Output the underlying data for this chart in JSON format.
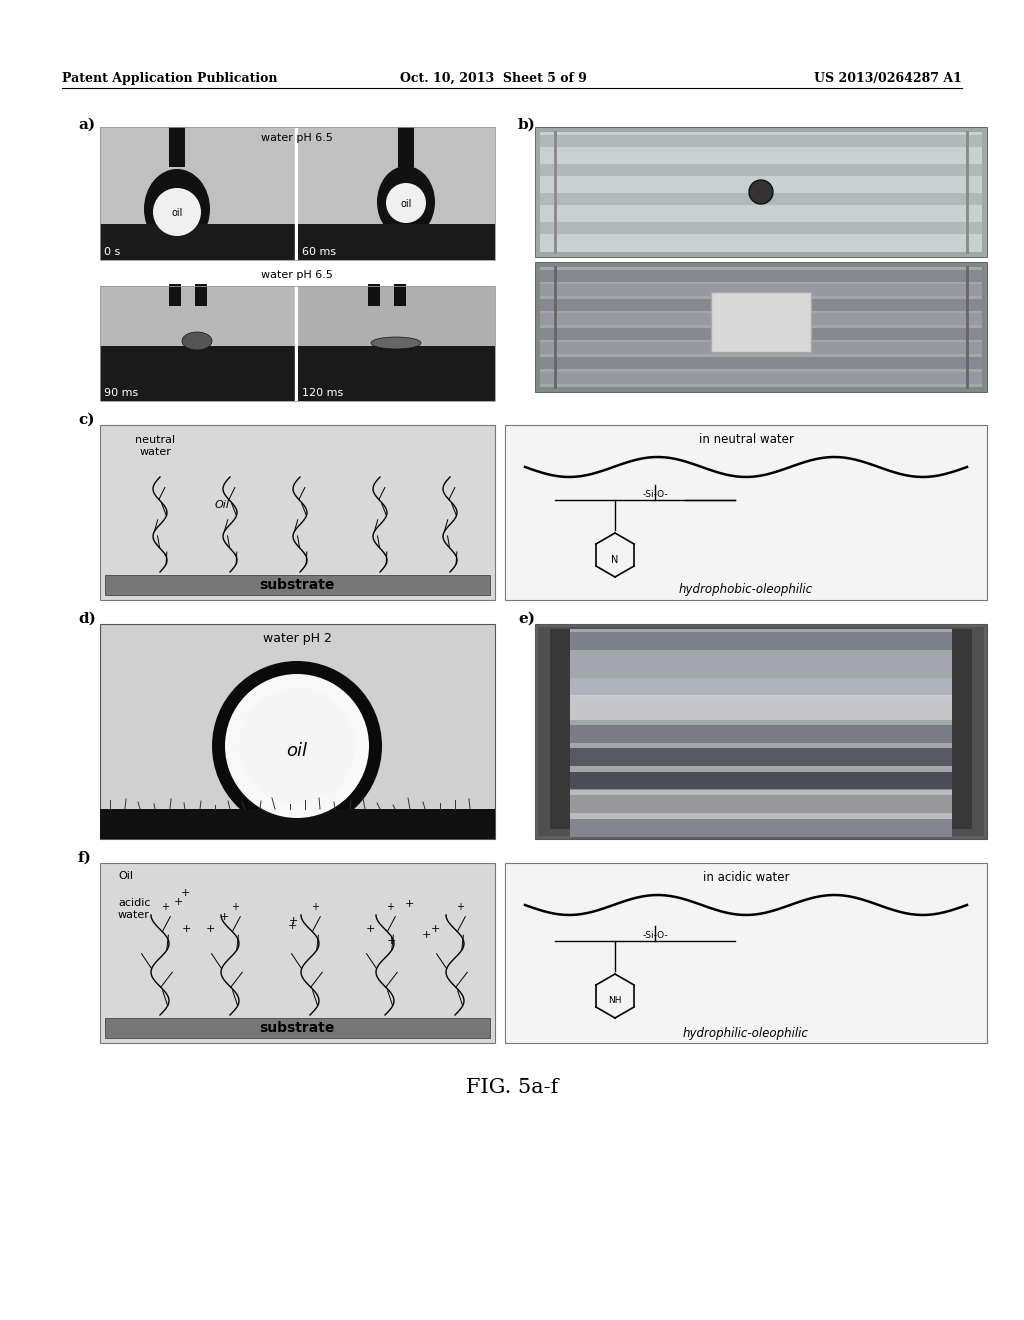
{
  "header_left": "Patent Application Publication",
  "header_center": "Oct. 10, 2013  Sheet 5 of 9",
  "header_right": "US 2013/0264287 A1",
  "caption": "FIG. 5a-f",
  "bg_color": "#ffffff",
  "panel_a_label": "a)",
  "panel_b_label": "b)",
  "panel_c_label": "c)",
  "panel_d_label": "d)",
  "panel_e_label": "e)",
  "panel_f_label": "f)",
  "panel_a_text1": "water pH 6.5",
  "panel_a_text2": "0 s",
  "panel_a_text3": "60 ms",
  "panel_a_text4": "water pH 6.5",
  "panel_a_text5": "90 ms",
  "panel_a_text6": "120 ms",
  "panel_a_oil1": "oil",
  "panel_a_oil2": "oil",
  "panel_c_text1": "neutral\nwater",
  "panel_c_text2": "Oil",
  "panel_c_substrate": "substrate",
  "panel_c_right_title": "in neutral water",
  "panel_c_right_label": "hydrophobic-oleophilic",
  "panel_d_text": "water pH 2",
  "panel_d_oil": "oil",
  "panel_f_oil": "Oil",
  "panel_f_text1": "acidic\nwater",
  "panel_f_substrate": "substrate",
  "panel_f_right_title": "in acidic water",
  "panel_f_right_label": "hydrophilic-oleophilic",
  "header_fontsize": 9,
  "label_fontsize": 11,
  "caption_fontsize": 14
}
